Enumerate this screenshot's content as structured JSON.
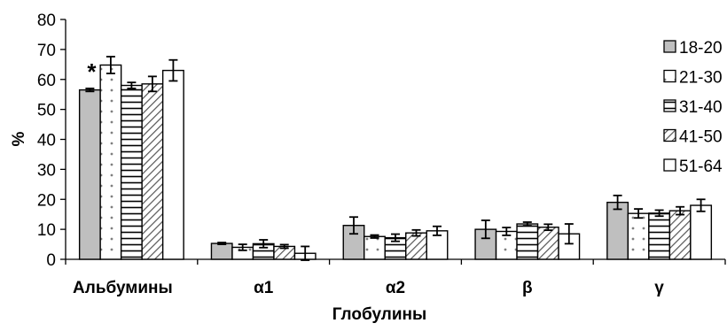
{
  "chart_data": {
    "type": "bar",
    "categories": [
      "Альбумины",
      "α1",
      "α2",
      "β",
      "γ"
    ],
    "series": [
      {
        "name": "18-20",
        "values": [
          56.5,
          5.3,
          11.3,
          10.0,
          19.0
        ],
        "errors": [
          0.5,
          0.3,
          2.8,
          3.0,
          2.3
        ]
      },
      {
        "name": "21-30",
        "values": [
          64.8,
          4.0,
          7.6,
          9.3,
          15.3
        ],
        "errors": [
          2.8,
          1.0,
          0.5,
          1.3,
          1.5
        ]
      },
      {
        "name": "31-40",
        "values": [
          58.0,
          5.2,
          7.2,
          11.8,
          15.4
        ],
        "errors": [
          1.0,
          1.3,
          1.2,
          0.6,
          1.0
        ]
      },
      {
        "name": "41-50",
        "values": [
          58.5,
          4.3,
          8.8,
          10.7,
          16.2
        ],
        "errors": [
          2.5,
          0.6,
          1.0,
          1.0,
          1.3
        ]
      },
      {
        "name": "51-64",
        "values": [
          63.0,
          2.0,
          9.5,
          8.5,
          18.0
        ],
        "errors": [
          3.5,
          2.3,
          1.5,
          3.3,
          2.0
        ]
      }
    ],
    "patterns": [
      "solid",
      "dots",
      "hlines",
      "diagonal",
      "blank"
    ],
    "colors": {
      "solid": "#bfbfbf",
      "stroke": "#000000",
      "hatch": "#555555"
    },
    "ylabel": "%",
    "xlabel": "Глобулины",
    "ylim": [
      0,
      80
    ],
    "yticks": [
      0,
      10,
      20,
      30,
      40,
      50,
      60,
      70,
      80
    ],
    "annotations": [
      {
        "text": "*",
        "category": "Альбумины",
        "series": "18-20"
      }
    ],
    "legend_position": "right",
    "grid": false
  }
}
